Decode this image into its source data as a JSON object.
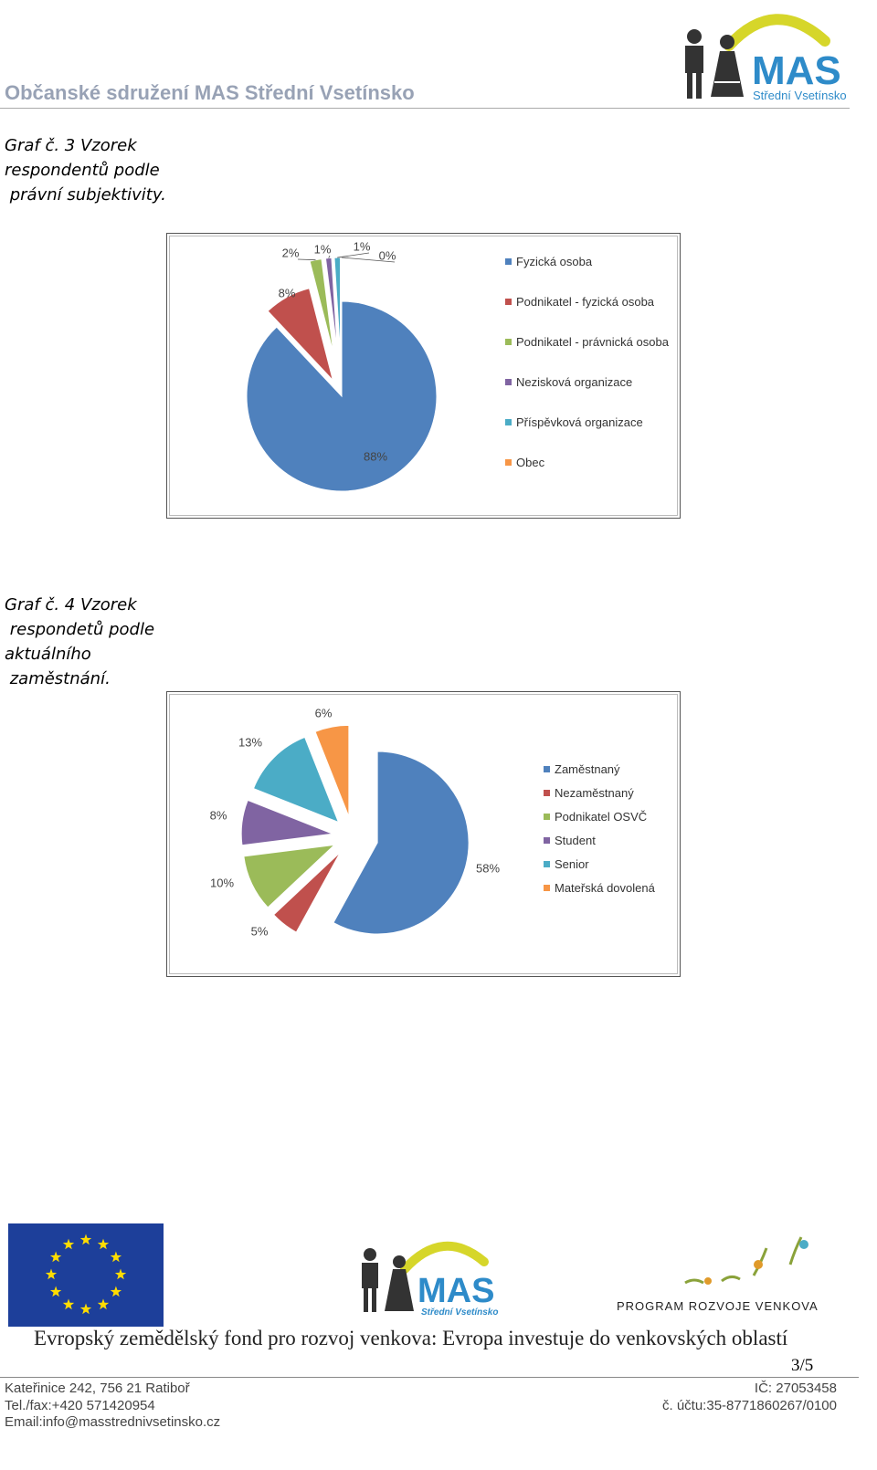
{
  "header": {
    "title": "Občanské sdružení MAS Střední Vsetínsko",
    "logo_text": "MAS",
    "logo_subtitle": "Střední Vsetínsko"
  },
  "captions": [
    [
      "Graf č. 3 Vzorek",
      "respondentů podle",
      " právní subjektivity."
    ],
    [
      "Graf č. 4 Vzorek",
      " respondetů podle",
      "aktuálního",
      " zaměstnání."
    ]
  ],
  "chart_data": [
    {
      "type": "pie",
      "categories": [
        "Fyzická osoba",
        "Podnikatel - fyzická osoba",
        "Podnikatel  - právnická osoba",
        "Nezisková organizace",
        "Příspěvková organizace",
        "Obec"
      ],
      "values": [
        88,
        8,
        2,
        1,
        1,
        0
      ],
      "value_labels": [
        "88%",
        "8%",
        "2%",
        "1%",
        "1%",
        "0%"
      ],
      "colors": [
        "#4f81bd",
        "#c0504d",
        "#9bbb59",
        "#8064a2",
        "#4bacc6",
        "#f79646"
      ]
    },
    {
      "type": "pie",
      "categories": [
        "Zaměstnaný",
        "Nezaměstnaný",
        "Podnikatel OSVČ",
        "Student",
        "Senior",
        "Mateřská dovolená"
      ],
      "values": [
        58,
        5,
        10,
        8,
        13,
        6
      ],
      "value_labels": [
        "58%",
        "5%",
        "10%",
        "8%",
        "13%",
        "6%"
      ],
      "colors": [
        "#4f81bd",
        "#c0504d",
        "#9bbb59",
        "#8064a2",
        "#4bacc6",
        "#f79646"
      ]
    }
  ],
  "footer": {
    "logo_text": "MAS",
    "logo_subtitle": "Střední Vsetínsko",
    "program": "PROGRAM ROZVOJE VENKOVA",
    "motto": "Evropský zemědělský fond pro rozvoj venkova: Evropa investuje do venkovských oblastí",
    "page": "3/5",
    "address": [
      "Kateřinice 242, 756 21  Ratiboř",
      "Tel./fax:+420 571420954",
      "Email:info@masstrednivsetinsko.cz"
    ],
    "ids": [
      "IČ: 27053458",
      "č. účtu:35-8771860267/0100"
    ]
  }
}
